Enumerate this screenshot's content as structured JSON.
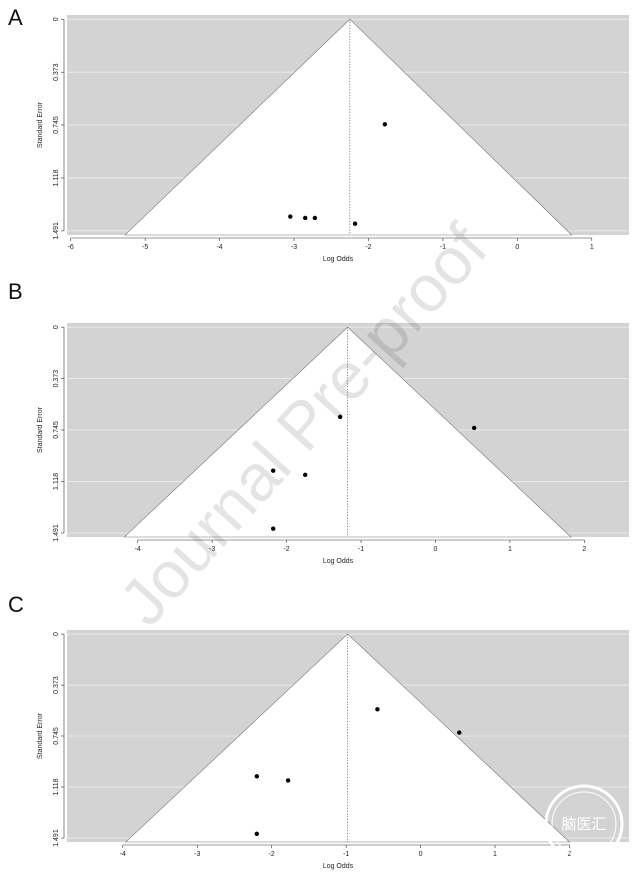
{
  "watermark": "Journal Pre-proof",
  "logo_text": "脑医汇",
  "chart_data": [
    {
      "panel": "A",
      "type": "scatter",
      "subtype": "funnel",
      "xlabel": "Log Odds",
      "ylabel": "Standard Error",
      "xlim": [
        -6.05,
        1.5
      ],
      "ylim": [
        1.52,
        -0.03
      ],
      "y_inverted": true,
      "xticks": [
        "-6",
        "-5",
        "-4",
        "-3",
        "-2",
        "-1",
        "0",
        "1"
      ],
      "yticks": [
        "0",
        "0.373",
        "0.745",
        "1.118",
        "1.491"
      ],
      "center": -2.25,
      "funnel_base_se": 1.52,
      "funnel_base": [
        -5.27,
        0.73
      ],
      "points": [
        {
          "x": -3.05,
          "y": 1.39
        },
        {
          "x": -2.85,
          "y": 1.4
        },
        {
          "x": -2.72,
          "y": 1.4
        },
        {
          "x": -2.18,
          "y": 1.44
        },
        {
          "x": -1.78,
          "y": 0.74
        }
      ],
      "grid": true,
      "background": "#d3d3d3"
    },
    {
      "panel": "B",
      "type": "scatter",
      "subtype": "funnel",
      "xlabel": "Log Odds",
      "ylabel": "Standard Error",
      "xlim": [
        -4.95,
        2.6
      ],
      "ylim": [
        1.52,
        -0.03
      ],
      "y_inverted": true,
      "xticks": [
        "-4",
        "-3",
        "-2",
        "-1",
        "0",
        "1",
        "2"
      ],
      "yticks": [
        "0",
        "0.373",
        "0.745",
        "1.118",
        "1.491"
      ],
      "center": -1.18,
      "funnel_base_se": 1.52,
      "funnel_base": [
        -4.18,
        1.82
      ],
      "points": [
        {
          "x": -1.28,
          "y": 0.65
        },
        {
          "x": 0.52,
          "y": 0.73
        },
        {
          "x": -2.18,
          "y": 1.04
        },
        {
          "x": -1.75,
          "y": 1.07
        },
        {
          "x": -2.18,
          "y": 1.46
        }
      ],
      "grid": true,
      "background": "#d3d3d3"
    },
    {
      "panel": "C",
      "type": "scatter",
      "subtype": "funnel",
      "xlabel": "Log Odds",
      "ylabel": "Standard Error",
      "xlim": [
        -4.75,
        2.8
      ],
      "ylim": [
        1.52,
        -0.03
      ],
      "y_inverted": true,
      "xticks": [
        "-4",
        "-3",
        "-2",
        "-1",
        "0",
        "1",
        "2"
      ],
      "yticks": [
        "0",
        "0.373",
        "0.745",
        "1.118",
        "1.491"
      ],
      "center": -0.98,
      "funnel_base_se": 1.52,
      "funnel_base": [
        -3.96,
        2.0
      ],
      "points": [
        {
          "x": -0.58,
          "y": 0.55
        },
        {
          "x": 0.52,
          "y": 0.72
        },
        {
          "x": -2.2,
          "y": 1.04
        },
        {
          "x": -1.78,
          "y": 1.07
        },
        {
          "x": -2.2,
          "y": 1.46
        }
      ],
      "grid": true,
      "background": "#d3d3d3"
    }
  ]
}
